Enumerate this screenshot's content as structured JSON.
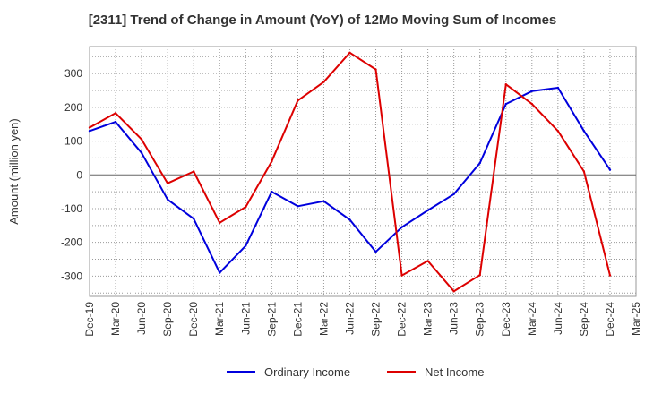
{
  "chart_data": {
    "type": "line",
    "title": "[2311]  Trend of Change in Amount (YoY) of 12Mo Moving Sum of Incomes",
    "xlabel": "",
    "ylabel": "Amount (million yen)",
    "categories": [
      "Dec-19",
      "Mar-20",
      "Jun-20",
      "Sep-20",
      "Dec-20",
      "Mar-21",
      "Jun-21",
      "Sep-21",
      "Dec-21",
      "Mar-22",
      "Jun-22",
      "Sep-22",
      "Dec-22",
      "Mar-23",
      "Jun-23",
      "Sep-23",
      "Dec-23",
      "Mar-24",
      "Jun-24",
      "Sep-24",
      "Dec-24",
      "Mar-25"
    ],
    "ylim": [
      -360,
      380
    ],
    "yticks": [
      -300,
      -200,
      -100,
      0,
      100,
      200,
      300
    ],
    "grid": true,
    "legend_position": "bottom",
    "series": [
      {
        "name": "Ordinary Income",
        "color": "#0000dd",
        "values": [
          130,
          157,
          65,
          -73,
          -130,
          -290,
          -210,
          -50,
          -93,
          -78,
          -133,
          -228,
          -155,
          -105,
          -57,
          35,
          210,
          248,
          258,
          130,
          15,
          null
        ]
      },
      {
        "name": "Net Income",
        "color": "#dd0000",
        "values": [
          140,
          183,
          105,
          -25,
          10,
          -142,
          -95,
          40,
          220,
          275,
          362,
          312,
          -298,
          -255,
          -345,
          -297,
          268,
          210,
          130,
          10,
          -298,
          null
        ]
      }
    ]
  }
}
